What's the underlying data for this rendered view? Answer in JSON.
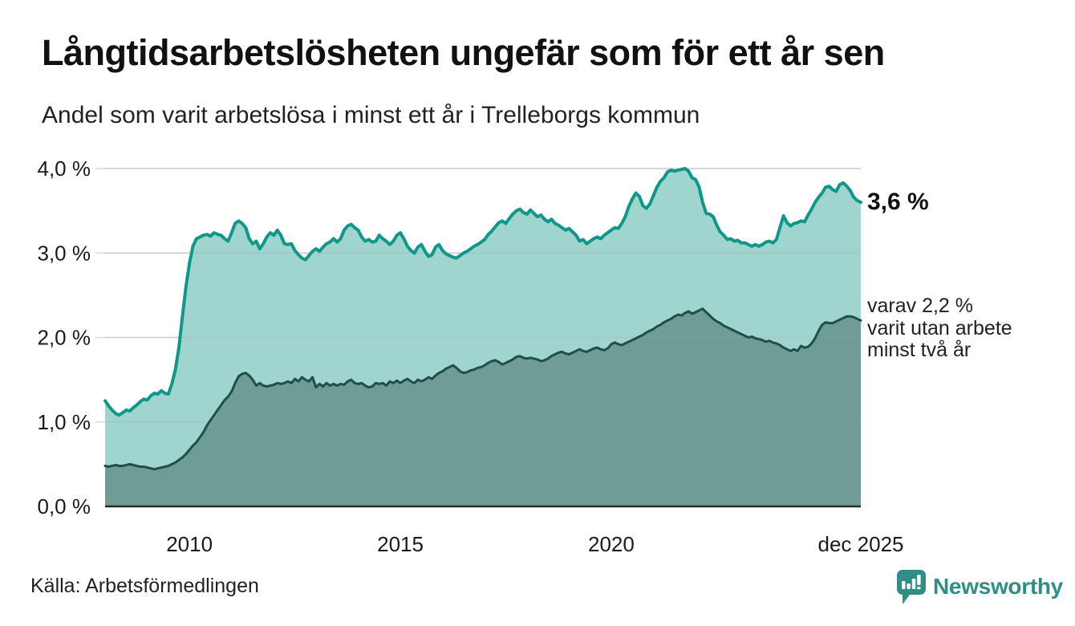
{
  "header": {
    "title": "Långtidsarbetslösheten ungefär som för ett år sen",
    "subtitle": "Andel som varit arbetslösa i minst ett år i Trelleborgs kommun"
  },
  "annotations": {
    "latest_total": "3,6 %",
    "subset_text": "varav 2,2 %\nvarit utan arbete\nminst två år"
  },
  "footer": {
    "source": "Källa: Arbetsförmedlingen",
    "brand": "Newsworthy"
  },
  "colors": {
    "accent_line": "#0f9889",
    "accent_fill": "#9fd5ce",
    "subset_line": "#1e4f49",
    "subset_fill": "#6f9d96",
    "grid": "#d8d8d8",
    "axis": "#2a2a2a",
    "text": "#1a1a1a",
    "brand_teal": "#2f8f86"
  },
  "chart_data": {
    "type": "area",
    "title": "Långtidsarbetslösheten ungefär som för ett år sen",
    "subtitle": "Andel som varit arbetslösa i minst ett år i Trelleborgs kommun",
    "xlabel": "",
    "ylabel": "",
    "grid": true,
    "legend": "none",
    "x_domain": [
      2008.0,
      2025.9167
    ],
    "ylim": [
      0,
      4
    ],
    "x_step_months": 1,
    "yticks": [
      {
        "value": 0,
        "label": "0,0 %"
      },
      {
        "value": 1,
        "label": "1,0 %"
      },
      {
        "value": 2,
        "label": "2,0 %"
      },
      {
        "value": 3,
        "label": "3,0 %"
      },
      {
        "value": 4,
        "label": "4,0 %"
      }
    ],
    "xticks": [
      {
        "value": 2010,
        "label": "2010"
      },
      {
        "value": 2015,
        "label": "2015"
      },
      {
        "value": 2020,
        "label": "2020"
      },
      {
        "value": 2025.9167,
        "label": "dec 2025"
      }
    ],
    "series": [
      {
        "name": "Andel som varit arbetslösa minst ett år",
        "line_color": "#0f9889",
        "fill_color": "#9fd5ce",
        "line_width": 4,
        "end_label": "3,6 %",
        "values": [
          1.25,
          1.19,
          1.14,
          1.1,
          1.08,
          1.11,
          1.14,
          1.13,
          1.17,
          1.2,
          1.24,
          1.27,
          1.26,
          1.31,
          1.34,
          1.33,
          1.37,
          1.34,
          1.33,
          1.45,
          1.62,
          1.88,
          2.25,
          2.6,
          2.88,
          3.08,
          3.17,
          3.19,
          3.21,
          3.22,
          3.2,
          3.24,
          3.22,
          3.21,
          3.17,
          3.14,
          3.24,
          3.35,
          3.38,
          3.35,
          3.3,
          3.17,
          3.11,
          3.14,
          3.05,
          3.11,
          3.19,
          3.24,
          3.21,
          3.27,
          3.21,
          3.11,
          3.1,
          3.11,
          3.03,
          2.98,
          2.94,
          2.92,
          2.97,
          3.02,
          3.05,
          3.02,
          3.07,
          3.11,
          3.13,
          3.17,
          3.13,
          3.17,
          3.27,
          3.32,
          3.34,
          3.3,
          3.27,
          3.19,
          3.14,
          3.16,
          3.13,
          3.14,
          3.21,
          3.17,
          3.14,
          3.1,
          3.14,
          3.21,
          3.24,
          3.17,
          3.08,
          3.03,
          3.0,
          3.07,
          3.1,
          3.02,
          2.96,
          2.98,
          3.07,
          3.1,
          3.03,
          2.99,
          2.97,
          2.95,
          2.94,
          2.97,
          3.0,
          3.02,
          3.05,
          3.08,
          3.1,
          3.13,
          3.16,
          3.22,
          3.26,
          3.31,
          3.36,
          3.38,
          3.35,
          3.41,
          3.46,
          3.5,
          3.52,
          3.48,
          3.46,
          3.51,
          3.47,
          3.43,
          3.45,
          3.4,
          3.37,
          3.4,
          3.35,
          3.33,
          3.3,
          3.27,
          3.29,
          3.25,
          3.21,
          3.14,
          3.16,
          3.11,
          3.14,
          3.17,
          3.19,
          3.17,
          3.21,
          3.24,
          3.27,
          3.3,
          3.29,
          3.35,
          3.43,
          3.55,
          3.64,
          3.71,
          3.67,
          3.56,
          3.53,
          3.58,
          3.68,
          3.78,
          3.85,
          3.89,
          3.96,
          3.98,
          3.97,
          3.98,
          3.99,
          4.0,
          3.97,
          3.89,
          3.87,
          3.78,
          3.6,
          3.47,
          3.46,
          3.43,
          3.33,
          3.25,
          3.21,
          3.16,
          3.17,
          3.14,
          3.15,
          3.12,
          3.12,
          3.1,
          3.08,
          3.1,
          3.08,
          3.1,
          3.13,
          3.14,
          3.12,
          3.16,
          3.3,
          3.44,
          3.36,
          3.32,
          3.35,
          3.36,
          3.38,
          3.37,
          3.45,
          3.52,
          3.6,
          3.66,
          3.71,
          3.78,
          3.79,
          3.75,
          3.73,
          3.81,
          3.83,
          3.79,
          3.74,
          3.66,
          3.62,
          3.6
        ]
      },
      {
        "name": "varav utan arbete minst två år",
        "line_color": "#1e4f49",
        "fill_color": "#6f9d96",
        "line_width": 3,
        "end_label": "varav 2,2 % varit utan arbete minst två år",
        "values": [
          0.48,
          0.47,
          0.48,
          0.49,
          0.48,
          0.48,
          0.49,
          0.5,
          0.49,
          0.48,
          0.47,
          0.47,
          0.46,
          0.45,
          0.44,
          0.45,
          0.46,
          0.47,
          0.48,
          0.5,
          0.52,
          0.55,
          0.58,
          0.62,
          0.67,
          0.72,
          0.76,
          0.82,
          0.88,
          0.96,
          1.02,
          1.08,
          1.14,
          1.2,
          1.26,
          1.3,
          1.36,
          1.46,
          1.54,
          1.57,
          1.58,
          1.55,
          1.5,
          1.43,
          1.46,
          1.43,
          1.42,
          1.43,
          1.44,
          1.46,
          1.45,
          1.46,
          1.48,
          1.46,
          1.51,
          1.48,
          1.53,
          1.5,
          1.48,
          1.53,
          1.41,
          1.45,
          1.42,
          1.46,
          1.43,
          1.45,
          1.43,
          1.45,
          1.44,
          1.48,
          1.5,
          1.46,
          1.45,
          1.46,
          1.43,
          1.41,
          1.42,
          1.46,
          1.45,
          1.46,
          1.43,
          1.48,
          1.46,
          1.49,
          1.46,
          1.49,
          1.51,
          1.48,
          1.46,
          1.5,
          1.48,
          1.5,
          1.53,
          1.51,
          1.55,
          1.58,
          1.6,
          1.63,
          1.65,
          1.67,
          1.64,
          1.6,
          1.58,
          1.59,
          1.61,
          1.62,
          1.64,
          1.65,
          1.67,
          1.7,
          1.72,
          1.73,
          1.71,
          1.68,
          1.7,
          1.72,
          1.74,
          1.77,
          1.78,
          1.76,
          1.75,
          1.76,
          1.75,
          1.74,
          1.72,
          1.73,
          1.75,
          1.78,
          1.8,
          1.82,
          1.83,
          1.81,
          1.8,
          1.82,
          1.84,
          1.86,
          1.84,
          1.83,
          1.85,
          1.87,
          1.88,
          1.86,
          1.85,
          1.87,
          1.92,
          1.94,
          1.92,
          1.91,
          1.93,
          1.95,
          1.97,
          1.99,
          2.01,
          2.03,
          2.06,
          2.08,
          2.1,
          2.13,
          2.15,
          2.18,
          2.2,
          2.22,
          2.25,
          2.27,
          2.26,
          2.29,
          2.31,
          2.28,
          2.3,
          2.32,
          2.34,
          2.3,
          2.26,
          2.22,
          2.19,
          2.17,
          2.14,
          2.12,
          2.1,
          2.08,
          2.06,
          2.04,
          2.02,
          2.0,
          2.01,
          1.99,
          1.98,
          1.97,
          1.95,
          1.96,
          1.94,
          1.93,
          1.91,
          1.88,
          1.86,
          1.84,
          1.86,
          1.84,
          1.9,
          1.88,
          1.89,
          1.93,
          1.99,
          2.08,
          2.15,
          2.18,
          2.17,
          2.17,
          2.19,
          2.21,
          2.23,
          2.25,
          2.25,
          2.24,
          2.22,
          2.2
        ]
      }
    ]
  }
}
